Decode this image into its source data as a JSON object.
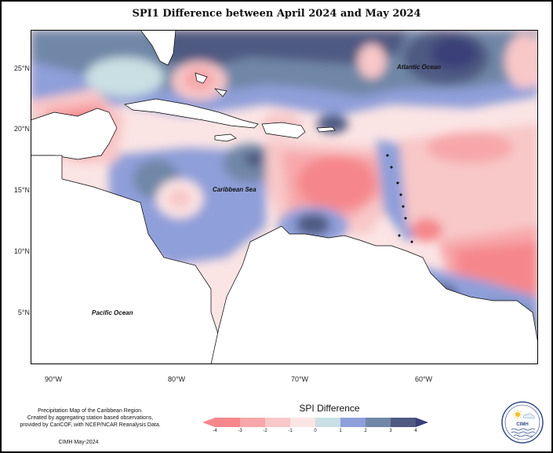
{
  "title": "SPI1 Difference between April 2024 and May 2024",
  "y_axis_labels": [
    "25°N",
    "20°N",
    "15°N",
    "10°N",
    "5°N"
  ],
  "x_axis_labels": [
    "90°W",
    "80°W",
    "70°W",
    "60°W"
  ],
  "map_labels": {
    "atlantic": "Atlantic Ocean",
    "caribbean": "Caribbean Sea",
    "pacific": "Pacific Ocean"
  },
  "credit": {
    "line1": "Precipitation Map of the Caribbean Region.",
    "line2": "Created by aggregating station based observations,",
    "line3": "provided by CariCOF, with NCEP/NCAR Reanalysis Data.",
    "footer": "CIMH May-2024"
  },
  "legend": {
    "title": "SPI Difference",
    "ticks": [
      "-4",
      "-3",
      "-2",
      "-1",
      "0",
      "1",
      "2",
      "3",
      "4"
    ],
    "colors": [
      "#f5878c",
      "#f7a7aa",
      "#f8c7c8",
      "#fbe4e4",
      "#c9dfe3",
      "#8f9fd9",
      "#7187a7",
      "#4f5a82"
    ],
    "end_left_color": "#f5878c",
    "end_right_color": "#3a3f78"
  },
  "logo_text": "CIMH"
}
